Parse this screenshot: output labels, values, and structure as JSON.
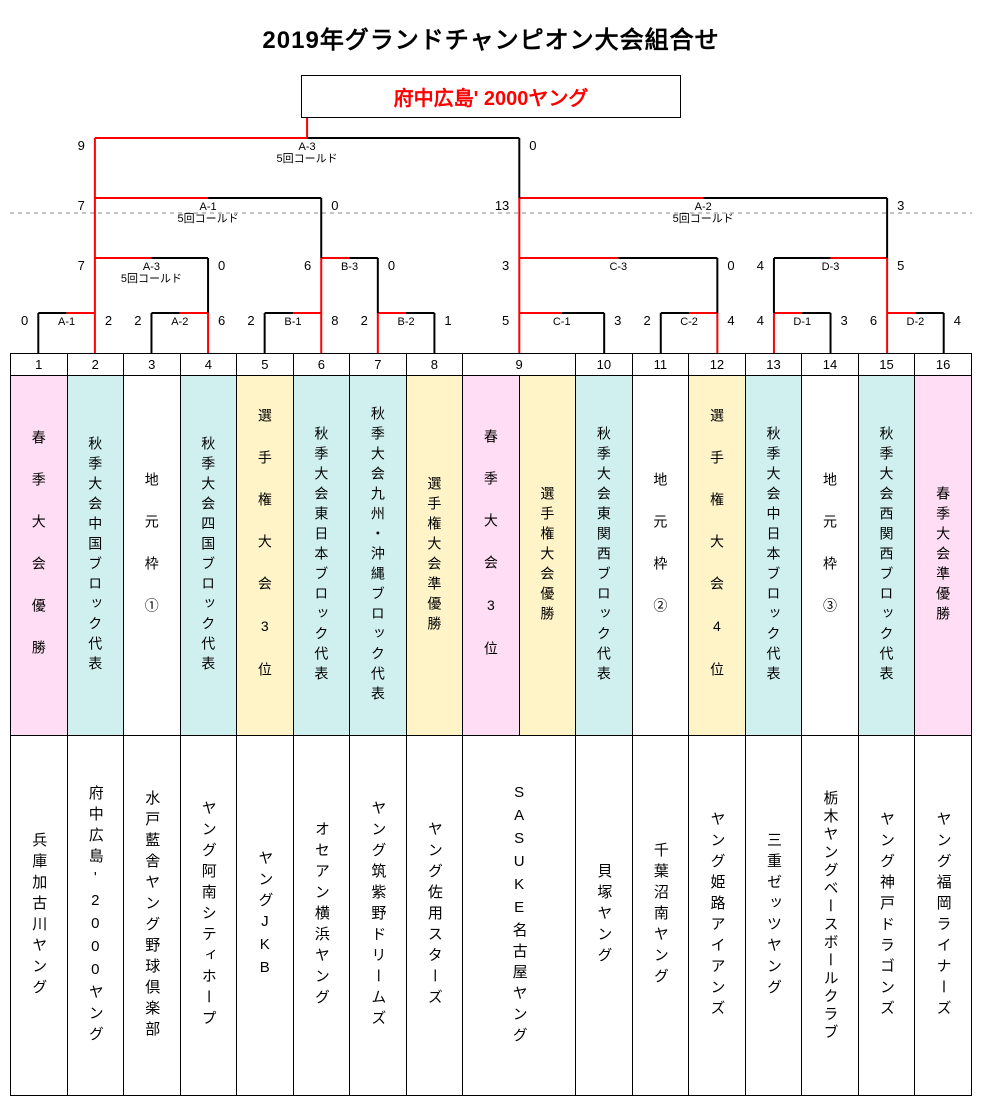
{
  "title": "2019年グランドチャンピオン大会組合せ",
  "champion": "府中広島' 2000ヤング",
  "colors": {
    "win": "#ff0000",
    "lose": "#000000",
    "dash": "#888888",
    "bg_pink": "#ffddf4",
    "bg_cyan": "#d0f0f0",
    "bg_yellow": "#fff4c8",
    "bg_white": "#ffffff"
  },
  "final": {
    "label": "A-3",
    "note": "5回コールド",
    "left_score": 9,
    "right_score": 0
  },
  "semis": [
    {
      "label": "A-1",
      "note": "5回コールド",
      "left_score": 7,
      "right_score": 0
    },
    {
      "label": "A-2",
      "note": "5回コールド",
      "left_score": 13,
      "right_score": 3
    }
  ],
  "quarters": [
    {
      "label": "A-3",
      "note": "5回コールド",
      "left_score": 7,
      "right_score": 0,
      "winner": "left"
    },
    {
      "label": "B-3",
      "note": "",
      "left_score": 6,
      "right_score": 0,
      "winner": "left"
    },
    {
      "label": "C-3",
      "note": "",
      "left_score": 3,
      "right_score": 0,
      "winner": "left"
    },
    {
      "label": "D-3",
      "note": "",
      "left_score": 4,
      "right_score": 5,
      "winner": "right"
    }
  ],
  "round1": [
    {
      "label": "A-1",
      "left_score": 0,
      "right_score": 2,
      "winner": "right"
    },
    {
      "label": "A-2",
      "left_score": 2,
      "right_score": 6,
      "winner": "right"
    },
    {
      "label": "B-1",
      "left_score": 2,
      "right_score": 8,
      "winner": "right"
    },
    {
      "label": "B-2",
      "left_score": 2,
      "right_score": 1,
      "winner": "left"
    },
    {
      "label": "C-1",
      "left_score": 5,
      "right_score": 3,
      "winner": "left"
    },
    {
      "label": "C-2",
      "left_score": 2,
      "right_score": 4,
      "winner": "right"
    },
    {
      "label": "D-1",
      "left_score": 4,
      "right_score": 3,
      "winner": "left"
    },
    {
      "label": "D-2",
      "left_score": 6,
      "right_score": 4,
      "winner": "left"
    }
  ],
  "slots": [
    {
      "n": 1,
      "qual": "春季大会優勝",
      "qual_spread": true,
      "color": "bg_pink",
      "team": "兵庫加古川ヤング"
    },
    {
      "n": 2,
      "qual": "秋季大会中国ブロック代表",
      "qual_spread": false,
      "color": "bg_cyan",
      "team": "府中広島'2000ヤング"
    },
    {
      "n": 3,
      "qual": "地元枠①",
      "qual_spread": true,
      "color": "bg_white",
      "team": "水戸藍舎ヤング野球倶楽部"
    },
    {
      "n": 4,
      "qual": "秋季大会四国ブロック代表",
      "qual_spread": false,
      "color": "bg_cyan",
      "team": "ヤング阿南シティホープ"
    },
    {
      "n": 5,
      "qual": "選手権大会3位",
      "qual_spread": true,
      "color": "bg_yellow",
      "team": "ヤングJKB"
    },
    {
      "n": 6,
      "qual": "秋季大会東日本ブロック代表",
      "qual_spread": false,
      "color": "bg_cyan",
      "team": "オセアン横浜ヤング"
    },
    {
      "n": 7,
      "qual": "秋季大会九州・沖縄ブロック代表",
      "qual_spread": false,
      "color": "bg_cyan",
      "team": "ヤング筑紫野ドリームズ"
    },
    {
      "n": 8,
      "qual": "選手権大会準優勝",
      "qual_spread": false,
      "color": "bg_yellow",
      "team": "ヤング佐用スターズ"
    },
    {
      "n": 9,
      "qual": "春季大会3位",
      "qual_spread": true,
      "color": "bg_pink",
      "team": "SASUKE名古屋ヤング",
      "half": true
    },
    {
      "n": 9,
      "qual": "選手権大会優勝",
      "qual_spread": false,
      "color": "bg_yellow",
      "team": "",
      "half": true
    },
    {
      "n": 10,
      "qual": "秋季大会東関西ブロック代表",
      "qual_spread": false,
      "color": "bg_cyan",
      "team": "貝塚ヤング"
    },
    {
      "n": 11,
      "qual": "地元枠②",
      "qual_spread": true,
      "color": "bg_white",
      "team": "千葉沼南ヤング"
    },
    {
      "n": 12,
      "qual": "選手権大会4位",
      "qual_spread": true,
      "color": "bg_yellow",
      "team": "ヤング姫路アイアンズ"
    },
    {
      "n": 13,
      "qual": "秋季大会中日本ブロック代表",
      "qual_spread": false,
      "color": "bg_cyan",
      "team": "三重ゼッツヤング"
    },
    {
      "n": 14,
      "qual": "地元枠③",
      "qual_spread": true,
      "color": "bg_white",
      "team": "栃木ヤングベースボールクラブ"
    },
    {
      "n": 15,
      "qual": "秋季大会西関西ブロック代表",
      "qual_spread": false,
      "color": "bg_cyan",
      "team": "ヤング神戸ドラゴンズ"
    },
    {
      "n": 16,
      "qual": "春季大会準優勝",
      "qual_spread": false,
      "color": "bg_pink",
      "team": "ヤング福岡ライナーズ"
    }
  ]
}
